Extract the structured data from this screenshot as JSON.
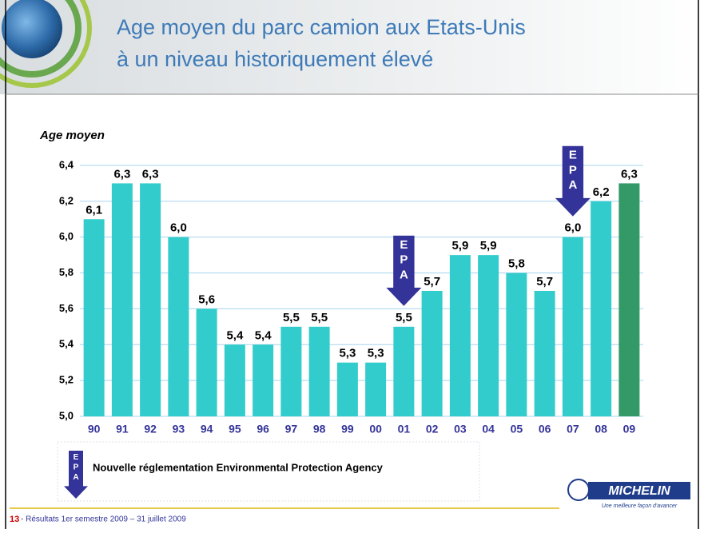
{
  "chart_data": {
    "type": "bar",
    "title": [
      "Age moyen du parc camion aux Etats-Unis",
      "à un niveau historiquement élevé"
    ],
    "y_label": "Age moyen",
    "categories": [
      "90",
      "91",
      "92",
      "93",
      "94",
      "95",
      "96",
      "97",
      "98",
      "99",
      "00",
      "01",
      "02",
      "03",
      "04",
      "05",
      "06",
      "07",
      "08",
      "09"
    ],
    "values": [
      6.1,
      6.3,
      6.3,
      6.0,
      5.6,
      5.4,
      5.4,
      5.5,
      5.5,
      5.3,
      5.3,
      5.5,
      5.7,
      5.9,
      5.9,
      5.8,
      5.7,
      6.0,
      6.2,
      6.3
    ],
    "value_labels": [
      "6,1",
      "6,3",
      "6,3",
      "6,0",
      "5,6",
      "5,4",
      "5,4",
      "5,5",
      "5,5",
      "5,3",
      "5,3",
      "5,5",
      "5,7",
      "5,9",
      "5,9",
      "5,8",
      "5,7",
      "6,0",
      "6,2",
      "6,3"
    ],
    "colors": [
      "#33cccc",
      "#33cccc",
      "#33cccc",
      "#33cccc",
      "#33cccc",
      "#33cccc",
      "#33cccc",
      "#33cccc",
      "#33cccc",
      "#33cccc",
      "#33cccc",
      "#33cccc",
      "#33cccc",
      "#33cccc",
      "#33cccc",
      "#33cccc",
      "#33cccc",
      "#33cccc",
      "#33cccc",
      "#339966"
    ],
    "ylim": [
      5.0,
      6.4
    ],
    "yticks": [
      {
        "value": 5.0,
        "label": "5,0"
      },
      {
        "value": 5.2,
        "label": "5,2"
      },
      {
        "value": 5.4,
        "label": "5,4"
      },
      {
        "value": 5.6,
        "label": "5,6"
      },
      {
        "value": 5.8,
        "label": "5,8"
      },
      {
        "value": 6.0,
        "label": "6,0"
      },
      {
        "value": 6.2,
        "label": "6,2"
      },
      {
        "value": 6.4,
        "label": "6,4"
      }
    ],
    "grid": true,
    "epa_markers": [
      {
        "text": "EPA",
        "at": "01"
      },
      {
        "text": "EPA",
        "at": "07"
      }
    ],
    "legend": {
      "marker": "EPA",
      "text": "Nouvelle réglementation Environmental Protection Agency"
    }
  },
  "footer": {
    "page": "13",
    "text": " - Résultats 1er semestre  2009 – 31 juillet 2009"
  },
  "logo": {
    "name": "MICHELIN",
    "tagline": "Une meilleure façon d'avancer"
  }
}
